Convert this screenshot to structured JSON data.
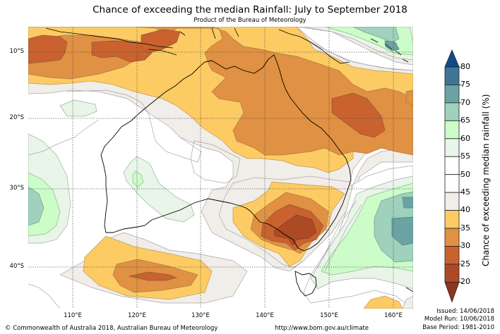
{
  "header": {
    "title": "Chance of exceeding the median Rainfall: July to September 2018",
    "subtitle": "Product of the Bureau of Meteorology"
  },
  "map": {
    "region": "Australia and surrounds",
    "lat_labels": [
      "10°S",
      "20°S",
      "30°S",
      "40°S"
    ],
    "lon_labels": [
      "110°E",
      "120°E",
      "130°E",
      "140°E",
      "150°E",
      "160°E"
    ],
    "gridlines": "dotted"
  },
  "colorbar": {
    "title": "Chance of exceeding median rainfall (%)",
    "tick_labels": [
      "80",
      "75",
      "70",
      "65",
      "60",
      "55",
      "50",
      "45",
      "40",
      "35",
      "30",
      "25",
      "20"
    ],
    "bands": [
      {
        "range": ">80",
        "color": "#0f4c8a"
      },
      {
        "range": "75-80",
        "color": "#3e7596"
      },
      {
        "range": "70-75",
        "color": "#6ba3a5"
      },
      {
        "range": "65-70",
        "color": "#9fd1bc"
      },
      {
        "range": "60-65",
        "color": "#ccfcc8"
      },
      {
        "range": "55-60",
        "color": "#e9f5e9"
      },
      {
        "range": "50-55",
        "color": "#ffffff"
      },
      {
        "range": "45-50",
        "color": "#ffffff"
      },
      {
        "range": "40-45",
        "color": "#f1ede8"
      },
      {
        "range": "35-40",
        "color": "#fdcb63"
      },
      {
        "range": "30-35",
        "color": "#e09143"
      },
      {
        "range": "25-30",
        "color": "#c9622e"
      },
      {
        "range": "20-25",
        "color": "#ad4a26"
      },
      {
        "range": "<20",
        "color": "#8e3520"
      }
    ]
  },
  "footer": {
    "copyright": "© Commonwealth of Australia 2018, Australian Bureau of Meteorology",
    "url": "http://www.bom.gov.au/climate",
    "issued": "Issued: 14/06/2018",
    "model_run": "Model Run: 10/06/2018",
    "base_period": "Base Period: 1981-2010"
  }
}
